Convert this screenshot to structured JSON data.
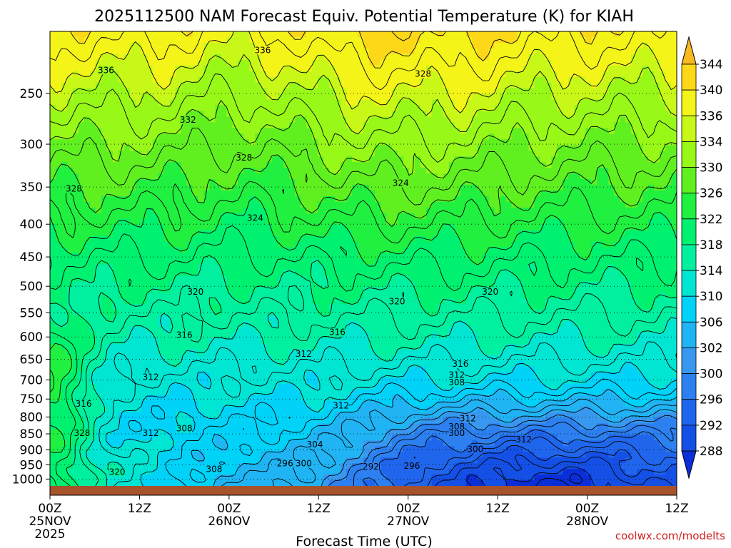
{
  "chart_data": {
    "type": "heatmap",
    "title": "2025112500 NAM Forecast Equiv. Potential Temperature (K) for KIAH",
    "xlabel": "Forecast Time (UTC)",
    "ylabel": "",
    "watermark": "coolwx.com/modelts",
    "x_ticks": [
      {
        "hour": 0,
        "label": "00Z",
        "sub": "25NOV",
        "sub2": "2025"
      },
      {
        "hour": 12,
        "label": "12Z",
        "sub": "",
        "sub2": ""
      },
      {
        "hour": 24,
        "label": "00Z",
        "sub": "26NOV",
        "sub2": ""
      },
      {
        "hour": 36,
        "label": "12Z",
        "sub": "",
        "sub2": ""
      },
      {
        "hour": 48,
        "label": "00Z",
        "sub": "27NOV",
        "sub2": ""
      },
      {
        "hour": 60,
        "label": "12Z",
        "sub": "",
        "sub2": ""
      },
      {
        "hour": 72,
        "label": "00Z",
        "sub": "28NOV",
        "sub2": ""
      },
      {
        "hour": 84,
        "label": "12Z",
        "sub": "",
        "sub2": ""
      }
    ],
    "xlim_hours": [
      0,
      84
    ],
    "y_levels_hpa": [
      250,
      300,
      350,
      400,
      450,
      500,
      550,
      600,
      650,
      700,
      750,
      800,
      850,
      900,
      950,
      1000
    ],
    "ylim_hpa": [
      200,
      1025
    ],
    "colorbar": {
      "levels": [
        288,
        292,
        296,
        300,
        302,
        306,
        310,
        314,
        318,
        322,
        326,
        330,
        334,
        336,
        340,
        344
      ],
      "colors": [
        "#0a2ed8",
        "#1450e6",
        "#2066ec",
        "#2c80f0",
        "#3898f0",
        "#20b4f4",
        "#00d2f8",
        "#00e6d2",
        "#00f0a0",
        "#00f070",
        "#20f040",
        "#60f020",
        "#98f818",
        "#c8f818",
        "#f4f418",
        "#fcd818",
        "#f8b820"
      ]
    },
    "contour_levels_labeled": [
      292,
      296,
      300,
      304,
      308,
      312,
      316,
      320,
      324,
      328,
      332,
      336
    ],
    "contour_labels": [
      {
        "v": 336,
        "h": 28.5,
        "p": 214
      },
      {
        "v": 336,
        "h": 7.5,
        "p": 230
      },
      {
        "v": 328,
        "h": 50,
        "p": 233
      },
      {
        "v": 332,
        "h": 18.5,
        "p": 275
      },
      {
        "v": 328,
        "h": 26,
        "p": 315
      },
      {
        "v": 324,
        "h": 47,
        "p": 345
      },
      {
        "v": 328,
        "h": 3.2,
        "p": 352
      },
      {
        "v": 324,
        "h": 27.5,
        "p": 391
      },
      {
        "v": 320,
        "h": 19.5,
        "p": 510
      },
      {
        "v": 320,
        "h": 46.5,
        "p": 528
      },
      {
        "v": 320,
        "h": 59,
        "p": 510
      },
      {
        "v": 316,
        "h": 18,
        "p": 596
      },
      {
        "v": 316,
        "h": 38.5,
        "p": 590
      },
      {
        "v": 312,
        "h": 34,
        "p": 638
      },
      {
        "v": 316,
        "h": 55,
        "p": 661
      },
      {
        "v": 312,
        "h": 13.5,
        "p": 693
      },
      {
        "v": 312,
        "h": 54.5,
        "p": 688
      },
      {
        "v": 308,
        "h": 54.5,
        "p": 707
      },
      {
        "v": 316,
        "h": 4.5,
        "p": 763
      },
      {
        "v": 312,
        "h": 39,
        "p": 768
      },
      {
        "v": 312,
        "h": 56,
        "p": 804
      },
      {
        "v": 308,
        "h": 54.5,
        "p": 828
      },
      {
        "v": 328,
        "h": 4.3,
        "p": 848
      },
      {
        "v": 312,
        "h": 13.5,
        "p": 848
      },
      {
        "v": 308,
        "h": 18,
        "p": 834
      },
      {
        "v": 300,
        "h": 54.5,
        "p": 848
      },
      {
        "v": 312,
        "h": 63.5,
        "p": 868
      },
      {
        "v": 304,
        "h": 35.5,
        "p": 883
      },
      {
        "v": 300,
        "h": 57,
        "p": 898
      },
      {
        "v": 296,
        "h": 31.5,
        "p": 946
      },
      {
        "v": 300,
        "h": 34,
        "p": 946
      },
      {
        "v": 292,
        "h": 43,
        "p": 956
      },
      {
        "v": 296,
        "h": 48.5,
        "p": 954
      },
      {
        "v": 320,
        "h": 9,
        "p": 975
      },
      {
        "v": 308,
        "h": 22,
        "p": 965
      }
    ],
    "field_description": "Theta-e is highest aloft (~336-344 K) near 200 hPa and decreases downward; a cold dry low-level pool (288-300 K) develops below 850 hPa after 27NOV 00Z; warm moist surface air (~328-336 K) near 1000 hPa at 25NOV 00Z-06Z."
  }
}
